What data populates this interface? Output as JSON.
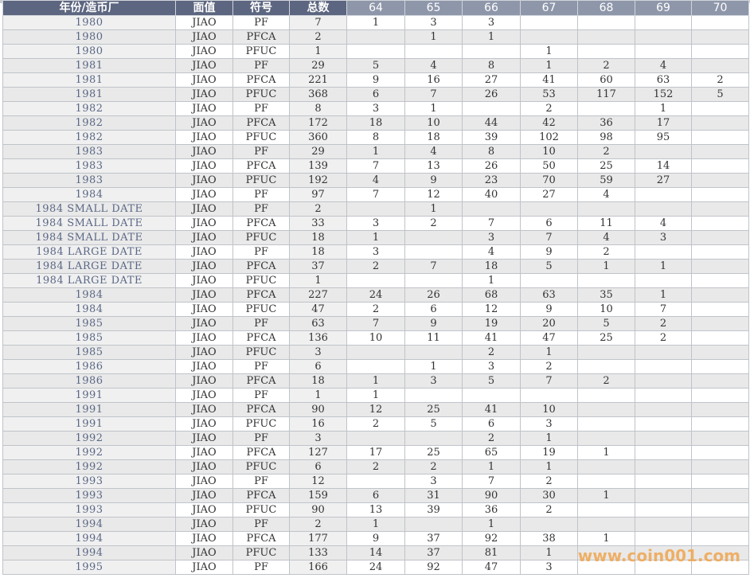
{
  "header": [
    "年份/造币厂",
    "面值",
    "符号",
    "总数",
    "64",
    "65",
    "66",
    "67",
    "68",
    "69",
    "70"
  ],
  "rows": [
    [
      "1980",
      "JIAO",
      "PF",
      "7",
      "1",
      "3",
      "3",
      "",
      "",
      "",
      ""
    ],
    [
      "1980",
      "JIAO",
      "PFCA",
      "2",
      "",
      "1",
      "1",
      "",
      "",
      "",
      ""
    ],
    [
      "1980",
      "JIAO",
      "PFUC",
      "1",
      "",
      "",
      "",
      "1",
      "",
      "",
      ""
    ],
    [
      "1981",
      "JIAO",
      "PF",
      "29",
      "5",
      "4",
      "8",
      "1",
      "2",
      "4",
      ""
    ],
    [
      "1981",
      "JIAO",
      "PFCA",
      "221",
      "9",
      "16",
      "27",
      "41",
      "60",
      "63",
      "2"
    ],
    [
      "1981",
      "JIAO",
      "PFUC",
      "368",
      "6",
      "7",
      "26",
      "53",
      "117",
      "152",
      "5"
    ],
    [
      "1982",
      "JIAO",
      "PF",
      "8",
      "3",
      "1",
      "",
      "2",
      "",
      "1",
      ""
    ],
    [
      "1982",
      "JIAO",
      "PFCA",
      "172",
      "18",
      "10",
      "44",
      "42",
      "36",
      "17",
      ""
    ],
    [
      "1982",
      "JIAO",
      "PFUC",
      "360",
      "8",
      "18",
      "39",
      "102",
      "98",
      "95",
      ""
    ],
    [
      "1983",
      "JIAO",
      "PF",
      "29",
      "1",
      "4",
      "8",
      "10",
      "2",
      "",
      ""
    ],
    [
      "1983",
      "JIAO",
      "PFCA",
      "139",
      "7",
      "13",
      "26",
      "50",
      "25",
      "14",
      ""
    ],
    [
      "1983",
      "JIAO",
      "PFUC",
      "192",
      "4",
      "9",
      "23",
      "70",
      "59",
      "27",
      ""
    ],
    [
      "1984",
      "JIAO",
      "PF",
      "97",
      "7",
      "12",
      "40",
      "27",
      "4",
      "",
      ""
    ],
    [
      "1984 SMALL DATE",
      "JIAO",
      "PF",
      "2",
      "",
      "1",
      "",
      "",
      "",
      "",
      ""
    ],
    [
      "1984 SMALL DATE",
      "JIAO",
      "PFCA",
      "33",
      "3",
      "2",
      "7",
      "6",
      "11",
      "4",
      ""
    ],
    [
      "1984 SMALL DATE",
      "JIAO",
      "PFUC",
      "18",
      "1",
      "",
      "3",
      "7",
      "4",
      "3",
      ""
    ],
    [
      "1984 LARGE DATE",
      "JIAO",
      "PF",
      "18",
      "3",
      "",
      "4",
      "9",
      "2",
      "",
      ""
    ],
    [
      "1984 LARGE DATE",
      "JIAO",
      "PFCA",
      "37",
      "2",
      "7",
      "18",
      "5",
      "1",
      "1",
      ""
    ],
    [
      "1984 LARGE DATE",
      "JIAO",
      "PFUC",
      "1",
      "",
      "",
      "1",
      "",
      "",
      "",
      ""
    ],
    [
      "1984",
      "JIAO",
      "PFCA",
      "227",
      "24",
      "26",
      "68",
      "63",
      "35",
      "1",
      ""
    ],
    [
      "1984",
      "JIAO",
      "PFUC",
      "47",
      "2",
      "6",
      "12",
      "9",
      "10",
      "7",
      ""
    ],
    [
      "1985",
      "JIAO",
      "PF",
      "63",
      "7",
      "9",
      "19",
      "20",
      "5",
      "2",
      ""
    ],
    [
      "1985",
      "JIAO",
      "PFCA",
      "136",
      "10",
      "11",
      "41",
      "47",
      "25",
      "2",
      ""
    ],
    [
      "1985",
      "JIAO",
      "PFUC",
      "3",
      "",
      "",
      "2",
      "1",
      "",
      "",
      ""
    ],
    [
      "1986",
      "JIAO",
      "PF",
      "6",
      "",
      "1",
      "3",
      "2",
      "",
      "",
      ""
    ],
    [
      "1986",
      "JIAO",
      "PFCA",
      "18",
      "1",
      "3",
      "5",
      "7",
      "2",
      "",
      ""
    ],
    [
      "1991",
      "JIAO",
      "PF",
      "1",
      "1",
      "",
      "",
      "",
      "",
      "",
      ""
    ],
    [
      "1991",
      "JIAO",
      "PFCA",
      "90",
      "12",
      "25",
      "41",
      "10",
      "",
      "",
      ""
    ],
    [
      "1991",
      "JIAO",
      "PFUC",
      "16",
      "2",
      "5",
      "6",
      "3",
      "",
      "",
      ""
    ],
    [
      "1992",
      "JIAO",
      "PF",
      "3",
      "",
      "",
      "2",
      "1",
      "",
      "",
      ""
    ],
    [
      "1992",
      "JIAO",
      "PFCA",
      "127",
      "17",
      "25",
      "65",
      "19",
      "1",
      "",
      ""
    ],
    [
      "1992",
      "JIAO",
      "PFUC",
      "6",
      "2",
      "2",
      "1",
      "1",
      "",
      "",
      ""
    ],
    [
      "1993",
      "JIAO",
      "PF",
      "12",
      "",
      "3",
      "7",
      "2",
      "",
      "",
      ""
    ],
    [
      "1993",
      "JIAO",
      "PFCA",
      "159",
      "6",
      "31",
      "90",
      "30",
      "1",
      "",
      ""
    ],
    [
      "1993",
      "JIAO",
      "PFUC",
      "90",
      "13",
      "39",
      "36",
      "2",
      "",
      "",
      ""
    ],
    [
      "1994",
      "JIAO",
      "PF",
      "2",
      "1",
      "",
      "1",
      "",
      "",
      "",
      ""
    ],
    [
      "1994",
      "JIAO",
      "PFCA",
      "177",
      "9",
      "37",
      "92",
      "38",
      "1",
      "",
      ""
    ],
    [
      "1994",
      "JIAO",
      "PFUC",
      "133",
      "14",
      "37",
      "81",
      "1",
      "",
      "",
      ""
    ],
    [
      "1995",
      "JIAO",
      "PF",
      "166",
      "24",
      "92",
      "47",
      "3",
      "",
      "",
      ""
    ]
  ],
  "watermark": "www.coin001.com",
  "colors": {
    "header_dark": "#5d6680",
    "header_light": "#8e97aa",
    "year_text": "#5a6785",
    "watermark": "#f0a550"
  }
}
